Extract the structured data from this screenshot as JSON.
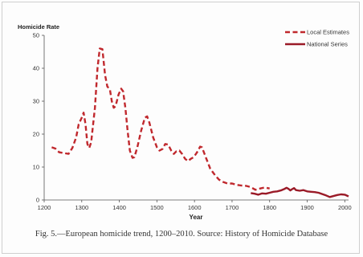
{
  "chart_data": {
    "type": "line",
    "ylabel": "Homicide Rate",
    "xlabel": "Year",
    "xlim": [
      1200,
      2010
    ],
    "ylim": [
      0,
      50
    ],
    "x_ticks": [
      1200,
      1300,
      1400,
      1500,
      1600,
      1700,
      1800,
      1900,
      2000
    ],
    "y_ticks": [
      0,
      10,
      20,
      30,
      40,
      50
    ],
    "grid": false,
    "legend_position": "top-right",
    "series": [
      {
        "name": "Local Estimates",
        "style": "dashed",
        "color": "#c0282d",
        "points": [
          [
            1220,
            16
          ],
          [
            1230,
            15.6
          ],
          [
            1240,
            14.5
          ],
          [
            1255,
            14.2
          ],
          [
            1265,
            14
          ],
          [
            1275,
            15.8
          ],
          [
            1285,
            19
          ],
          [
            1292,
            23
          ],
          [
            1300,
            25
          ],
          [
            1305,
            26.5
          ],
          [
            1310,
            23
          ],
          [
            1315,
            17
          ],
          [
            1320,
            15.8
          ],
          [
            1325,
            17.5
          ],
          [
            1335,
            28
          ],
          [
            1342,
            40
          ],
          [
            1348,
            46
          ],
          [
            1355,
            45.8
          ],
          [
            1362,
            38
          ],
          [
            1368,
            34.5
          ],
          [
            1375,
            33.5
          ],
          [
            1380,
            30
          ],
          [
            1385,
            28
          ],
          [
            1390,
            28.5
          ],
          [
            1398,
            32
          ],
          [
            1405,
            33.8
          ],
          [
            1410,
            33
          ],
          [
            1416,
            28
          ],
          [
            1422,
            21
          ],
          [
            1428,
            15
          ],
          [
            1435,
            12.8
          ],
          [
            1440,
            13
          ],
          [
            1448,
            16
          ],
          [
            1458,
            21
          ],
          [
            1468,
            25
          ],
          [
            1474,
            25.4
          ],
          [
            1480,
            23.5
          ],
          [
            1490,
            19
          ],
          [
            1500,
            16
          ],
          [
            1507,
            15
          ],
          [
            1515,
            15.5
          ],
          [
            1522,
            17
          ],
          [
            1530,
            16.8
          ],
          [
            1538,
            15
          ],
          [
            1545,
            14
          ],
          [
            1552,
            14.8
          ],
          [
            1560,
            15
          ],
          [
            1567,
            14
          ],
          [
            1575,
            12.5
          ],
          [
            1583,
            11.8
          ],
          [
            1590,
            12.5
          ],
          [
            1598,
            13
          ],
          [
            1607,
            14.5
          ],
          [
            1615,
            16.2
          ],
          [
            1620,
            16
          ],
          [
            1630,
            13
          ],
          [
            1642,
            9.5
          ],
          [
            1655,
            7.5
          ],
          [
            1665,
            6.2
          ],
          [
            1675,
            5.5
          ],
          [
            1688,
            5
          ],
          [
            1700,
            5
          ],
          [
            1712,
            4.6
          ],
          [
            1725,
            4.4
          ],
          [
            1737,
            4.3
          ],
          [
            1750,
            3.9
          ],
          [
            1762,
            3.1
          ],
          [
            1775,
            3.5
          ],
          [
            1787,
            3.8
          ],
          [
            1800,
            3.5
          ]
        ]
      },
      {
        "name": "National Series",
        "style": "solid",
        "color": "#9a1a27",
        "points": [
          [
            1750,
            2.1
          ],
          [
            1760,
            1.9
          ],
          [
            1770,
            1.6
          ],
          [
            1780,
            2.0
          ],
          [
            1790,
            1.9
          ],
          [
            1800,
            2.2
          ],
          [
            1810,
            2.5
          ],
          [
            1820,
            2.6
          ],
          [
            1830,
            2.9
          ],
          [
            1840,
            3.4
          ],
          [
            1845,
            3.7
          ],
          [
            1850,
            3.4
          ],
          [
            1855,
            2.9
          ],
          [
            1860,
            3.3
          ],
          [
            1865,
            3.6
          ],
          [
            1870,
            3.0
          ],
          [
            1880,
            2.8
          ],
          [
            1890,
            3.0
          ],
          [
            1900,
            2.6
          ],
          [
            1910,
            2.5
          ],
          [
            1920,
            2.4
          ],
          [
            1930,
            2.2
          ],
          [
            1940,
            1.8
          ],
          [
            1950,
            1.4
          ],
          [
            1960,
            0.9
          ],
          [
            1970,
            1.2
          ],
          [
            1980,
            1.5
          ],
          [
            1990,
            1.7
          ],
          [
            2000,
            1.6
          ],
          [
            2010,
            1.1
          ]
        ]
      }
    ]
  },
  "caption": "Fig. 5.—European homicide trend, 1200–2010. Source: History of Homicide Database"
}
